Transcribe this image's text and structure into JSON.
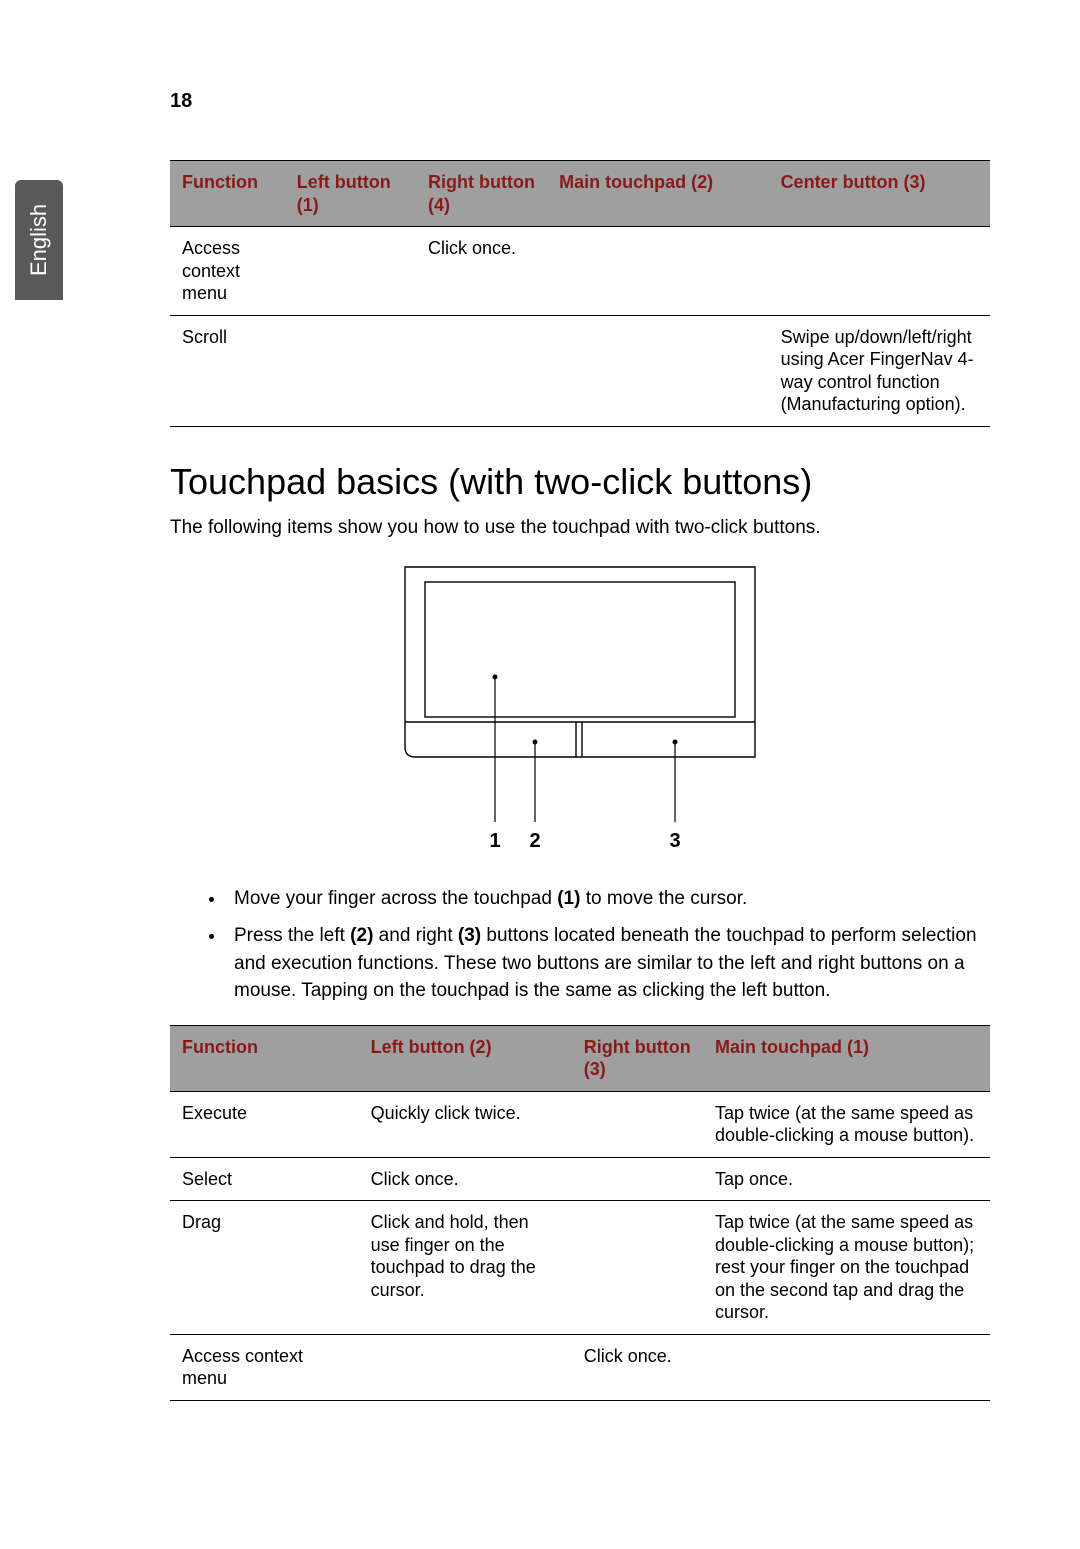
{
  "page_number": "18",
  "side_tab": "English",
  "colors": {
    "header_bg": "#9f9f9f",
    "header_text": "#8a1a1a",
    "tab_bg": "#595959",
    "tab_text": "#ffffff",
    "border": "#000000"
  },
  "table1": {
    "headers": {
      "function": "Function",
      "left_button": "Left button (1)",
      "right_button": "Right button (4)",
      "main_touchpad": "Main touchpad (2)",
      "center_button": "Center button (3)"
    },
    "col_widths": [
      "14%",
      "16%",
      "16%",
      "27%",
      "27%"
    ],
    "rows": [
      {
        "function": "Access context menu",
        "left_button": "",
        "right_button": "Click once.",
        "main_touchpad": "",
        "center_button": ""
      },
      {
        "function": "Scroll",
        "left_button": "",
        "right_button": "",
        "main_touchpad": "",
        "center_button": "Swipe up/down/left/right using Acer FingerNav 4-way control function (Manufacturing option)."
      }
    ]
  },
  "section_heading": "Touchpad basics (with two-click buttons)",
  "intro_text": "The following items show you how to use the touchpad with two-click buttons.",
  "diagram_labels": {
    "n1": "1",
    "n2": "2",
    "n3": "3"
  },
  "bullets": {
    "b1_pre": "Move your finger across the touchpad ",
    "b1_bold": "(1)",
    "b1_post": " to move the cursor.",
    "b2_a": "Press the left ",
    "b2_b": "(2)",
    "b2_c": " and right ",
    "b2_d": "(3)",
    "b2_e": " buttons located beneath the touchpad to perform selection and execution functions. These two buttons are similar to the left and right buttons on a mouse. Tapping on the touchpad is the same as clicking the left button."
  },
  "table2": {
    "headers": {
      "function": "Function",
      "left_button": "Left button (2)",
      "right_button": "Right button (3)",
      "main_touchpad": "Main touchpad (1)"
    },
    "col_widths": [
      "23%",
      "26%",
      "16%",
      "35%"
    ],
    "rows": [
      {
        "function": "Execute",
        "left_button": "Quickly click twice.",
        "right_button": "",
        "main_touchpad": "Tap twice (at the same speed as double-clicking a mouse button)."
      },
      {
        "function": "Select",
        "left_button": "Click once.",
        "right_button": "",
        "main_touchpad": "Tap once."
      },
      {
        "function": "Drag",
        "left_button": "Click and hold, then use finger on the touchpad to drag the cursor.",
        "right_button": "",
        "main_touchpad": "Tap twice (at the same speed as double-clicking a mouse button); rest your finger on the touchpad on the second tap and drag the cursor."
      },
      {
        "function": "Access context menu",
        "left_button": "",
        "right_button": "Click once.",
        "main_touchpad": ""
      }
    ]
  }
}
